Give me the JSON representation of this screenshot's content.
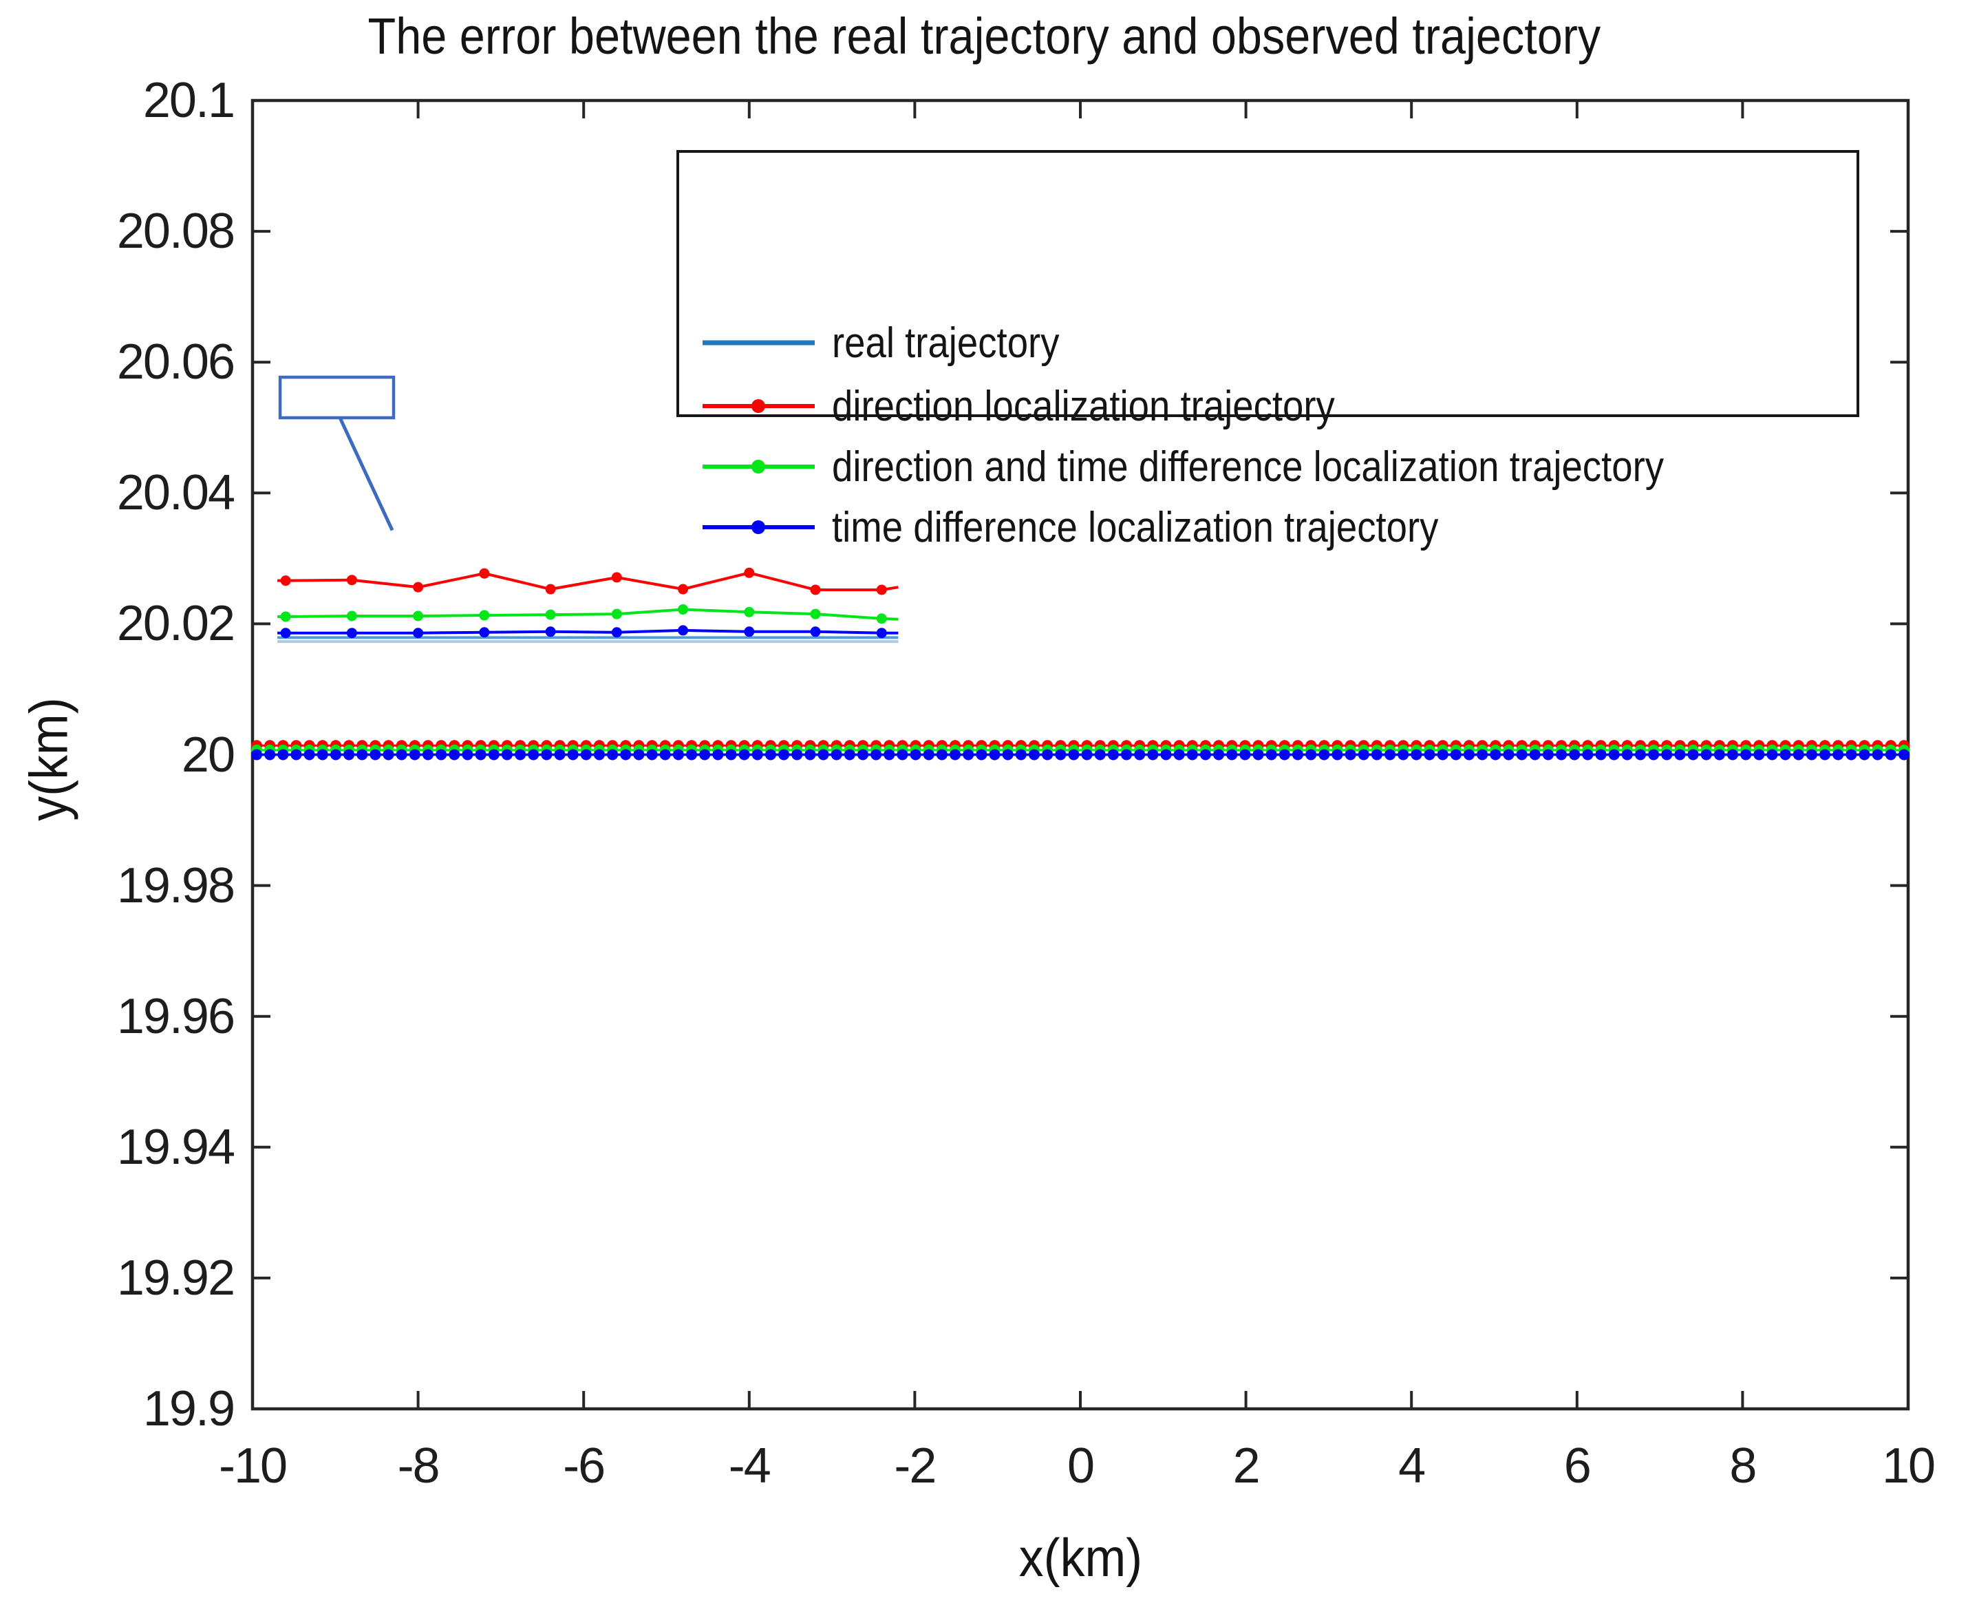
{
  "chart_data": {
    "type": "line",
    "title": "The error between the real trajectory and observed trajectory",
    "xlabel": "x(km)",
    "ylabel": "y(km)",
    "xlim": [
      -10,
      10
    ],
    "ylim": [
      19.9,
      20.1
    ],
    "grid": false,
    "box": true,
    "axis_color": "#262626",
    "x_ticks": {
      "values": [
        -10,
        -8,
        -6,
        -4,
        -2,
        0,
        2,
        4,
        6,
        8,
        10
      ],
      "labels": [
        "-10",
        "-8",
        "-6",
        "-4",
        "-2",
        "0",
        "2",
        "4",
        "6",
        "8",
        "10"
      ]
    },
    "y_ticks": {
      "values": [
        19.9,
        19.92,
        19.94,
        19.96,
        19.98,
        20,
        20.02,
        20.04,
        20.06,
        20.08,
        20.1
      ],
      "labels": [
        "19.9",
        "19.92",
        "19.94",
        "19.96",
        "19.98",
        "20",
        "20.02",
        "20.04",
        "20.06",
        "20.08",
        "20.1"
      ]
    },
    "legend": {
      "position": "upper center",
      "entries": [
        {
          "label": "real trajectory",
          "color": "#1b7ac1",
          "marker": "none",
          "line_width": 7
        },
        {
          "label": "direction localization trajectory",
          "color": "#ff0000",
          "marker": "dot",
          "line_width": 6
        },
        {
          "label": "direction and time difference localization trajectory",
          "color": "#00e619",
          "marker": "dot",
          "line_width": 6
        },
        {
          "label": "time difference localization trajectory",
          "color": "#0000ff",
          "marker": "dot",
          "line_width": 6
        }
      ]
    },
    "main_series": [
      {
        "name": "real trajectory",
        "color": "#1b7ac1",
        "marker": "none",
        "line_width": 4,
        "x_range": [
          -10,
          10
        ],
        "n_points": 2,
        "y_const": 20.0
      },
      {
        "name": "direction localization trajectory",
        "color": "#ff0000",
        "marker": "dot",
        "marker_radius_px": 8,
        "line_width": 3,
        "x_range": [
          -9.95,
          9.95
        ],
        "n_points": 126,
        "y_const": 20.0014
      },
      {
        "name": "direction and time difference localization trajectory",
        "color": "#00e619",
        "marker": "dot",
        "marker_radius_px": 8,
        "line_width": 3,
        "x_range": [
          -9.95,
          9.95
        ],
        "n_points": 126,
        "y_const": 20.0007
      },
      {
        "name": "time difference localization trajectory",
        "color": "#0000ff",
        "marker": "dot",
        "marker_radius_px": 8,
        "line_width": 3,
        "x_range": [
          -9.95,
          9.95
        ],
        "n_points": 126,
        "y_const": 20.0
      }
    ],
    "inset": {
      "note": "magnified detail of the trajectories drawn near the top-left of the axes",
      "x": [
        -9.7,
        -9.6,
        -8.8,
        -8.0,
        -7.2,
        -6.4,
        -5.6,
        -4.8,
        -4.0,
        -3.2,
        -2.4,
        -2.2
      ],
      "marker_indices": [
        1,
        2,
        3,
        4,
        5,
        6,
        7,
        8,
        9,
        10
      ],
      "marker_radius_px": 7.5,
      "series": [
        {
          "name": "direction localization trajectory",
          "color": "#ff0000",
          "line_width": 4,
          "y": [
            20.0266,
            20.0266,
            20.0267,
            20.0256,
            20.0277,
            20.0253,
            20.0271,
            20.0253,
            20.0278,
            20.0252,
            20.0252,
            20.0256
          ]
        },
        {
          "name": "direction and time difference localization trajectory",
          "color": "#00e619",
          "line_width": 4,
          "y": [
            20.0211,
            20.0211,
            20.0212,
            20.0212,
            20.0213,
            20.0214,
            20.0215,
            20.0222,
            20.0218,
            20.0215,
            20.0208,
            20.0207
          ]
        },
        {
          "name": "time difference localization trajectory",
          "color": "#0000ff",
          "line_width": 4,
          "y": [
            20.0186,
            20.0186,
            20.0186,
            20.0186,
            20.0187,
            20.0188,
            20.0187,
            20.019,
            20.0188,
            20.0188,
            20.0186,
            20.0186
          ]
        }
      ],
      "real_lines": [
        {
          "name": "real trajectory",
          "color": "#4f9bd5",
          "line_width": 4,
          "y_const": 20.0179,
          "x_range": [
            -9.7,
            -2.2
          ]
        },
        {
          "name": "real trajectory (lower edge)",
          "color": "#a6cbe9",
          "line_width": 4,
          "y_const": 20.0173,
          "x_range": [
            -9.7,
            -2.2
          ]
        }
      ]
    },
    "annotation": {
      "color": "#3c6bbf",
      "rect": {
        "x1": -9.667,
        "x2": -8.296,
        "y_top": 20.0577,
        "y_bottom": 20.0515
      },
      "leader_line": {
        "x1": -8.944,
        "y1": 20.0515,
        "x2": -8.312,
        "y2": 20.0343
      }
    }
  }
}
